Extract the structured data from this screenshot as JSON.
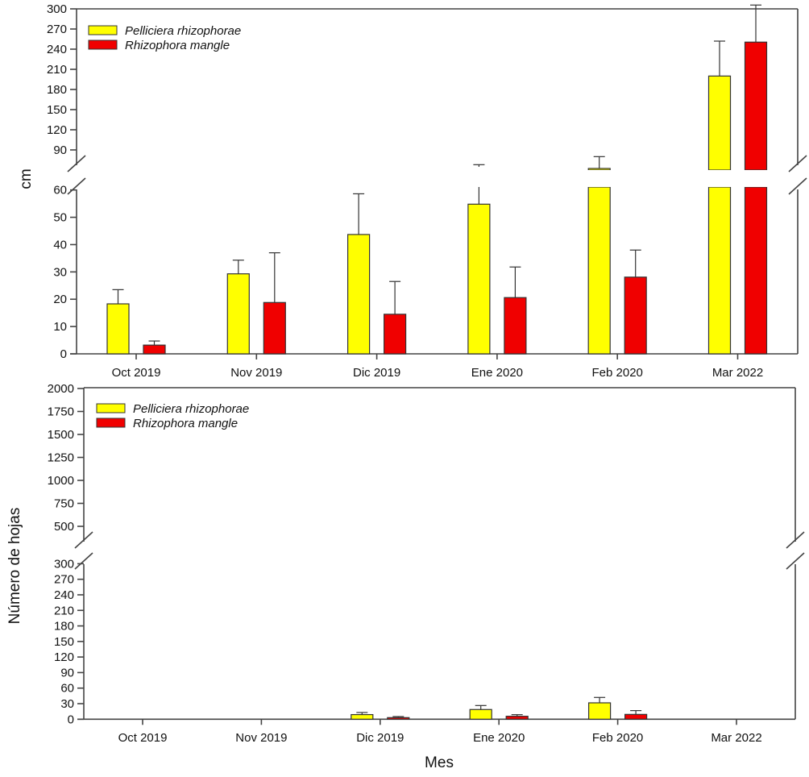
{
  "chart_data": [
    {
      "type": "bar",
      "title": "",
      "xlabel": "",
      "ylabel": "cm",
      "categories": [
        "Oct 2019",
        "Nov 2019",
        "Dic 2019",
        "Ene 2020",
        "Feb 2020",
        "Mar 2022"
      ],
      "y_axis_break": {
        "lower_range": [
          0,
          60
        ],
        "upper_range": [
          60,
          300
        ]
      },
      "yticks_lower": [
        0,
        10,
        20,
        30,
        40,
        50,
        60
      ],
      "yticks_upper": [
        90,
        120,
        150,
        180,
        210,
        240,
        270,
        300
      ],
      "legend_position": "top-left",
      "series": [
        {
          "name": "Pelliciera rhizophorae",
          "color": "#ffff00",
          "values": [
            18.3,
            29.3,
            43.7,
            54.8,
            62.4,
            200
          ],
          "error_upper": [
            23.5,
            34.3,
            58.6,
            68,
            80,
            252
          ]
        },
        {
          "name": "Rhizophora mangle",
          "color": "#f00000",
          "values": [
            3.2,
            18.8,
            14.5,
            20.6,
            28.1,
            250.5
          ],
          "error_upper": [
            4.7,
            37,
            26.5,
            31.8,
            38,
            305.7
          ]
        }
      ]
    },
    {
      "type": "bar",
      "title": "",
      "xlabel": "Mes",
      "ylabel": "Número de hojas",
      "categories": [
        "Oct 2019",
        "Nov 2019",
        "Dic 2019",
        "Ene 2020",
        "Feb 2020",
        "Mar 2022"
      ],
      "y_axis_break": {
        "lower_range": [
          0,
          300
        ],
        "upper_range": [
          300,
          2000
        ]
      },
      "yticks_lower": [
        0,
        30,
        60,
        90,
        120,
        150,
        180,
        210,
        240,
        270,
        300
      ],
      "yticks_upper": [
        500,
        750,
        1000,
        1250,
        1500,
        1750,
        2000
      ],
      "legend_position": "top-left",
      "series": [
        {
          "name": "Pelliciera rhizophorae",
          "color": "#ffff00",
          "values": [
            null,
            null,
            8.9,
            18.7,
            31.6,
            null
          ],
          "error_upper": [
            null,
            null,
            12.9,
            26.4,
            42,
            null
          ]
        },
        {
          "name": "Rhizophora mangle",
          "color": "#f00000",
          "values": [
            null,
            null,
            3.1,
            5.7,
            9.3,
            null
          ],
          "error_upper": [
            null,
            null,
            5.1,
            8.8,
            16.6,
            null
          ]
        }
      ]
    }
  ]
}
